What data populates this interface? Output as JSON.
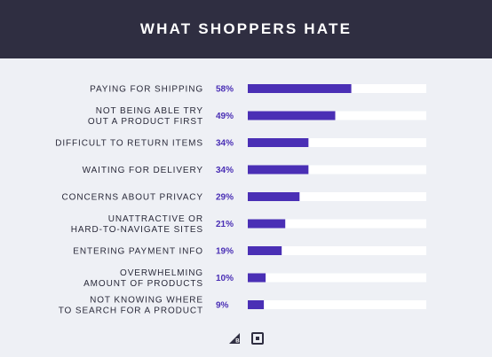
{
  "header": {
    "title": "WHAT SHOPPERS HATE"
  },
  "colors": {
    "header_bg": "#2f2e41",
    "bar": "#4a2fb5",
    "track": "#ffffff",
    "background": "#eef0f5"
  },
  "chart_data": {
    "type": "bar",
    "orientation": "horizontal",
    "title": "WHAT SHOPPERS HATE",
    "xlim": [
      0,
      100
    ],
    "categories": [
      [
        "PAYING FOR SHIPPING"
      ],
      [
        "NOT BEING ABLE TRY",
        "OUT A PRODUCT FIRST"
      ],
      [
        "DIFFICULT TO RETURN ITEMS"
      ],
      [
        "WAITING FOR DELIVERY"
      ],
      [
        "CONCERNS ABOUT PRIVACY"
      ],
      [
        "UNATTRACTIVE OR",
        "HARD-TO-NAVIGATE SITES"
      ],
      [
        "ENTERING PAYMENT INFO"
      ],
      [
        "OVERWHELMING",
        "AMOUNT OF PRODUCTS"
      ],
      [
        "NOT KNOWING WHERE",
        "TO SEARCH FOR A PRODUCT"
      ]
    ],
    "values": [
      58,
      49,
      34,
      34,
      29,
      21,
      19,
      10,
      9
    ],
    "value_labels": [
      "58%",
      "49%",
      "34%",
      "34%",
      "29%",
      "21%",
      "19%",
      "10%",
      "9%"
    ],
    "grid": false,
    "legend": "none"
  },
  "footer": {
    "icons": [
      "bigcommerce-logo-icon",
      "square-logo-icon"
    ]
  }
}
